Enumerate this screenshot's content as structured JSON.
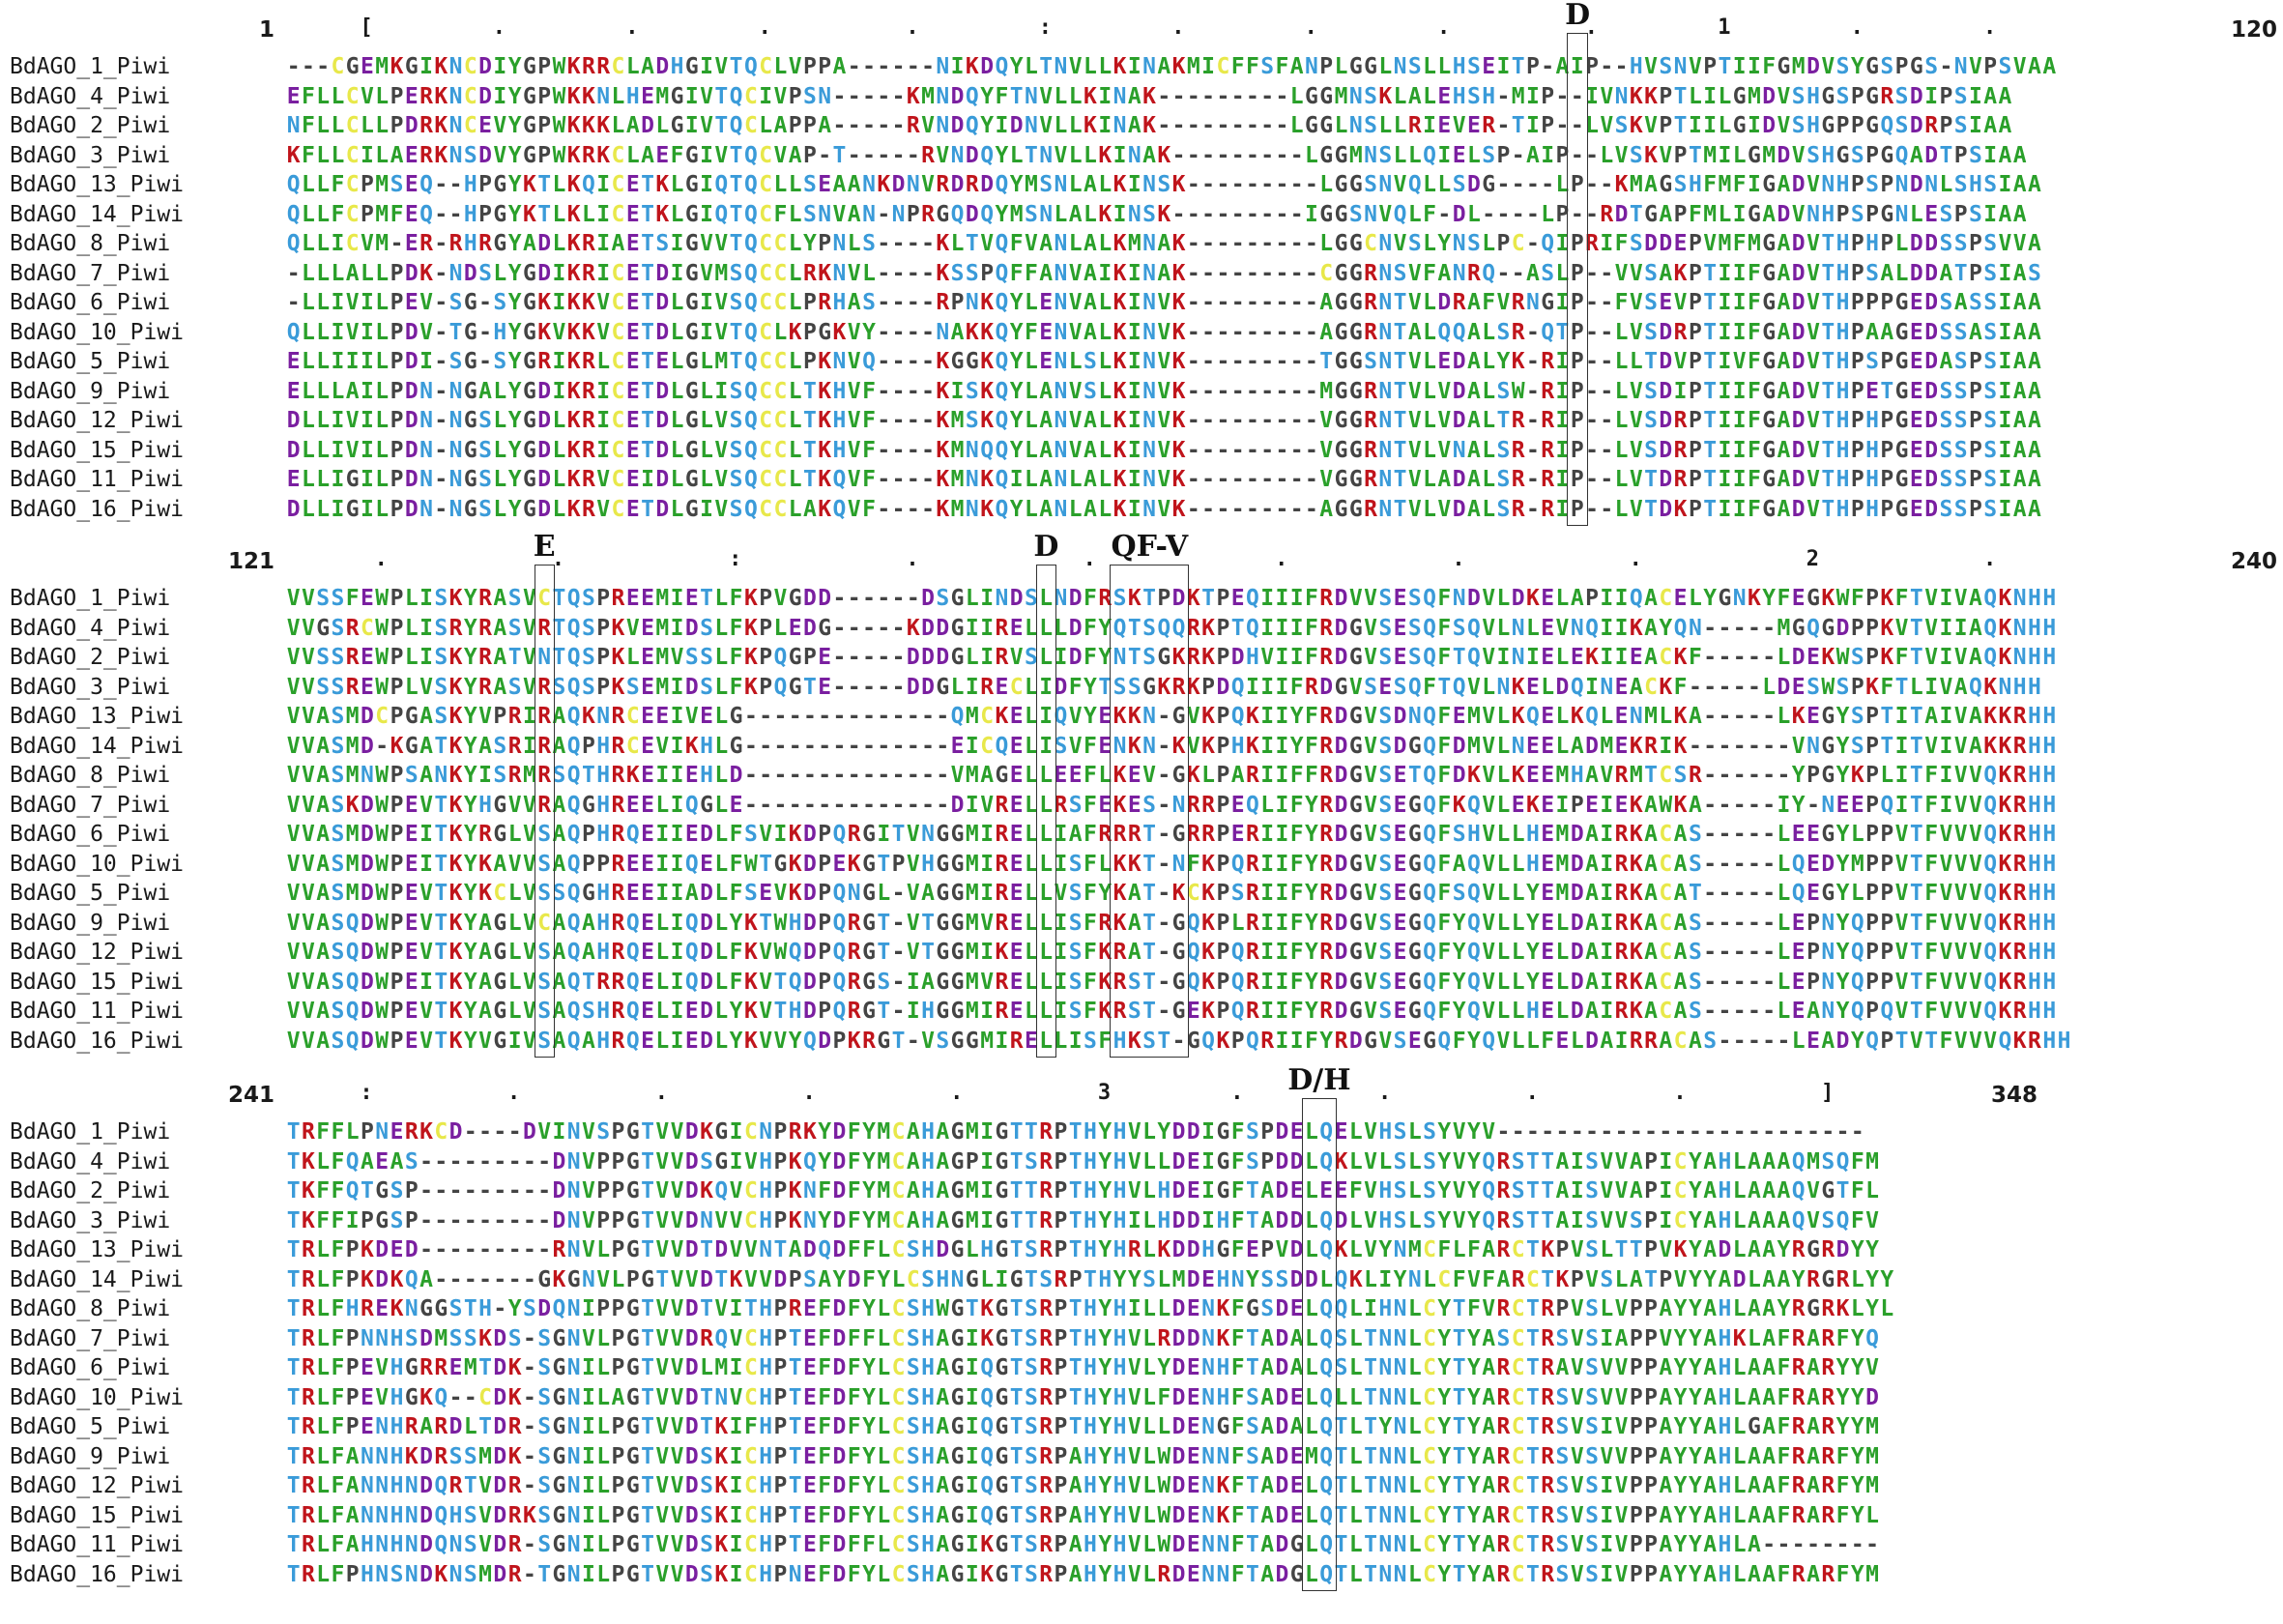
{
  "colors": {
    "hydrophobic": "#2aa02a",
    "positive": "#c0141b",
    "negative": "#7a1fa0",
    "polar": "#3a9bd9",
    "cysteine": "#e8e84a",
    "glycine": "#8a6a10",
    "default": "#444444",
    "gap": "#444444"
  },
  "blocks": [
    {
      "start_label": "1",
      "end_label": "120",
      "ruler_marks": [
        "[",
        ".",
        ".",
        ".",
        ".",
        ":",
        ".",
        ".",
        ".",
        ".",
        "1",
        ".",
        "."
      ],
      "names": [
        "BdAGO_1_Piwi",
        "BdAGO_4_Piwi",
        "BdAGO_2_Piwi",
        "BdAGO_3_Piwi",
        "BdAGO_13_Piwi",
        "BdAGO_14_Piwi",
        "BdAGO_8_Piwi",
        "BdAGO_7_Piwi",
        "BdAGO_6_Piwi",
        "BdAGO_10_Piwi",
        "BdAGO_5_Piwi",
        "BdAGO_9_Piwi",
        "BdAGO_12_Piwi",
        "BdAGO_15_Piwi",
        "BdAGO_11_Piwi",
        "BdAGO_16_Piwi"
      ],
      "seqs": [
        "---CGEMKGIKNCDIYGPWKRRCLADHGIVTQCLVPPA------NIKDQYLTNVLLKINAKMICFFSFANPLGGLNSLLHSEITP-AIP--HVSNVPTIIFGMDVSYGSPGS-NVPSVAA",
        "EFLLCVLPERKNCDIYGPWKKNLHEMGIVTQCIVPSN-----KMNDQYFTNVLLKINAK---------LGGMNSKLALEHSH-MIP--IVNKKPTLILGMDVSHGSPGRSDIPSIAA",
        "NFLLCLLPDRKNCEVYGPWKKKLADLGIVTQCLAPPA-----RVNDQYIDNVLLKINAK---------LGGLNSLLRIEVER-TIP--LVSKVPTIILGIDVSHGPPGQSDRPSIAA",
        "KFLLCILAERKNSDVYGPWKRKCLAEFGIVTQCVAP-T-----RVNDQYLTNVLLKINAK---------LGGMNSLLQIELSP-AIP--LVSKVPTMILGMDVSHGSPGQADTPSIAA",
        "QLLFCPMSEQ--HPGYKTLKQICETKLGIQTQCLLSEAANKDNVRDRDQYMSNLALKINSK---------LGGSNVQLLSDG----LP--KMAGSHFMFIGADVNHPSPNDNLSHSIAA",
        "QLLFCPMFEQ--HPGYKTLKLICETKLGIQTQCFLSNVAN-NPRGQDQYMSNLALKINSK---------IGGSNVQLF-DL----LP--RDTGAPFMLIGADVNHPSPGNLESPSIAA",
        "QLLICVM-ER-RHRGYADLKRIAETSIGVVTQCCLYPNLS----KLTVQFVANLALKMNAK---------LGGCNVSLYNSLPC-QIPRIFSDDEPVMFMGADVTHPHPLDDSSPSVVA",
        "-LLLALLPDK-NDSLYGDIKRICETDIGVMSQCCLRKNVL----KSSPQFFANVAIKINAK---------CGGRNSVFANRQ--ASLP--VVSAKPTIIFGADVTHPSALDDATPSIAS",
        "-LLIVILPEV-SG-SYGKIKKVCETDLGIVSQCCLPRHAS----RPNKQYLENVALKINVK---------AGGRNTVLDRAFVRNGIP--FVSEVPTIIFGADVTHPPPGEDSASSIAA",
        "QLLIVILPDV-TG-HYGKVKKVCETDLGIVTQCLKPGKVY----NAKKQYFENVALKINVK---------AGGRNTALQQALSR-QTP--LVSDRPTIIFGADVTHPAAGEDSSASIAA",
        "ELLIIILPDI-SG-SYGRIKRLCETELGLMTQCCLPKNVQ----KGGKQYLENLSLKINVK---------TGGSNTVLEDALYK-RIP--LLTDVPTIVFGADVTHPSPGEDASPSIAA",
        "ELLLAILPDN-NGALYGDIKRICETDLGLISQCCLTKHVF----KISKQYLANVSLKINVK---------MGGRNTVLVDALSW-RIP--LVSDIPTIIFGADVTHPETGEDSSPSIAA",
        "DLLIVILPDN-NGSLYGDLKRICETDLGLVSQCCLTKHVF----KMSKQYLANVALKINVK---------VGGRNTVLVDALTR-RIP--LVSDRPTIIFGADVTHPHPGEDSSPSIAA",
        "DLLIVILPDN-NGSLYGDLKRICETDLGLVSQCCLTKHVF----KMNQQYLANVALKINVK---------VGGRNTVLVNALSR-RIP--LVSDRPTIIFGADVTHPHPGEDSSPSIAA",
        "ELLIGILPDN-NGSLYGDLKRVCEIDLGLVSQCCLTKQVF----KMNKQILANLALKINVK---------VGGRNTVLADALSR-RIP--LVTDRPTIIFGADVTHPHPGEDSSPSIAA",
        "DLLIGILPDN-NGSLYGDLKRVCETDLGIVSQCCLAKQVF----KMNKQYLANLALKINVK---------AGGRNTVLVDALSR-RIP--LVTDKPTIIFGADVTHPHPGEDSSPSIAA"
      ],
      "motifs": [
        {
          "label": "D",
          "col": 87
        }
      ]
    },
    {
      "start_label": "121",
      "end_label": "240",
      "ruler_marks": [
        ".",
        ".",
        ":",
        ".",
        ".",
        ".",
        ".",
        ".",
        "2",
        "."
      ],
      "names": [
        "BdAGO_1_Piwi",
        "BdAGO_4_Piwi",
        "BdAGO_2_Piwi",
        "BdAGO_3_Piwi",
        "BdAGO_13_Piwi",
        "BdAGO_14_Piwi",
        "BdAGO_8_Piwi",
        "BdAGO_7_Piwi",
        "BdAGO_6_Piwi",
        "BdAGO_10_Piwi",
        "BdAGO_5_Piwi",
        "BdAGO_9_Piwi",
        "BdAGO_12_Piwi",
        "BdAGO_15_Piwi",
        "BdAGO_11_Piwi",
        "BdAGO_16_Piwi"
      ],
      "seqs": [
        "VVSSFEWPLISKYRASVCTQSPREEMIETLFKPVGDD------DSGLINDSLNDFRSKTPDKTPEQIIIFRDVVSESQFNDVLDKELAPIIQACELYGNKYFEGKWFPKFTVIVAQKNHH",
        "VVGSRCWPLISRYRASVRTQSPKVEMIDSLFKPLEDG-----KDDGIIRELLLDFYQTSQQRKPTQIIIFRDGVSESQFSQVLNLEVNQIIKAYQN-----MGQGDPPKVTVIIAQKNHH",
        "VVSSREWPLISKYRATVNTQSPKLEMVSSLFKPQGPE-----DDDGLIRVSLIDFYNTSGKRKPDHVIIFRDGVSESQFTQVINIELEKIIEACKF-----LDEKWSPKFTVIVAQKNHH",
        "VVSSREWPLVSKYRASVRSQSPKSEMIDSLFKPQGTE-----DDGLIRECLIDFYTSSGKRKPDQIIIFRDGVSESQFTQVLNKELDQINEACKF-----LDESWSPKFTLIVAQKNHH",
        "VVASMDCPGASKYVPRIRAQKNRCEEIVELG--------------QMCKELIQVYEKKN-GVKPQKIIYFRDGVSDNQFEMVLKQELKQLENMLKA-----LKEGYSPTITAIVAKKRHH",
        "VVASMD-KGATKYASRIRAQPHRCEVIKHLG--------------EICQELISVFENKN-KVKPHKIIYFRDGVSDGQFDMVLNEELADMEKRIK-------VNGYSPTITVIVAKKRHH",
        "VVASMNWPSANKYISRMRSQTHRKEIIEHLD--------------VMAGELLEEFLKEV-GKLPARIIFFRDGVSETQFDKVLKEEMHAVRMTCSR------YPGYKPLITFIVVQKRHH",
        "VVASKDWPEVTKYHGVVRAQGHREELIQGLE--------------DIVRELLRSFEKES-NRRPEQLIFYRDGVSEGQFKQVLEKEIPEIEKAWKA-----IY-NEEPQITFIVVQKRHH",
        "VVASMDWPEITKYRGLVSAQPHRQEIIEDLFSVIKDPQRGITVNGGMIRELLIAFRRRT-GRRPERIIFYRDGVSEGQFSHVLLHEMDAIRKACAS-----LEEGYLPPVTFVVVQKRHH",
        "VVASMDWPEITKYKAVVSAQPPREEIIQELFWTGKDPEKGTPVHGGMIRELLISFLKKT-NFKPQRIIFYRDGVSEGQFAQVLLHEMDAIRKACAS-----LQEDYMPPVTFVVVQKRHH",
        "VVASMDWPEVTKYKCLVSSQGHREEIIADLFSEVKDPQNGL-VAGGMIRELLVSFYKAT-KCKPSRIIFYRDGVSEGQFSQVLLYEMDAIRKACAT-----LQEGYLPPVTFVVVQKRHH",
        "VVASQDWPEVTKYAGLVCAQAHRQELIQDLYKTWHDPQRGT-VTGGMVRELLISFRKAT-GQKPLRIIFYRDGVSEGQFYQVLLYELDAIRKACAS-----LEPNYQPPVTFVVVQKRHH",
        "VVASQDWPEVTKYAGLVSAQAHRQELIQDLFKVWQDPQRGT-VTGGMIKELLISFKRAT-GQKPQRIIFYRDGVSEGQFYQVLLYELDAIRKACAS-----LEPNYQPPVTFVVVQKRHH",
        "VVASQDWPEITKYAGLVSAQTRRQELIQDLFKVTQDPQRGS-IAGGMVRELLISFKRST-GQKPQRIIFYRDGVSEGQFYQVLLYELDAIRKACAS-----LEPNYQPPVTFVVVQKRHH",
        "VVASQDWPEVTKYAGLVSAQSHRQELIEDLYKVTHDPQRGT-IHGGMIRELLISFKRST-GEKPQRIIFYRDGVSEGQFYQVLLHELDAIRKACAS-----LEANYQPQVTFVVVQKRHH",
        "VVASQDWPEVTKYVGIVSAQAHRQELIEDLYKVVYQDPKRGT-VSGGMIRELLISFHKST-GQKPQRIIFYRDGVSEGQFYQVLLFELDAIRRACAS-----LEADYQPTVTFVVVQKRHH"
      ],
      "motifs": [
        {
          "label": "E",
          "col": 17
        },
        {
          "label": "D",
          "col": 51
        },
        {
          "label": "QF-V",
          "col": 56,
          "width": 5
        }
      ]
    },
    {
      "start_label": "241",
      "end_label": "348",
      "ruler_marks": [
        ":",
        ".",
        ".",
        ".",
        ".",
        "3",
        ".",
        ".",
        ".",
        ".",
        "]"
      ],
      "names": [
        "BdAGO_1_Piwi",
        "BdAGO_4_Piwi",
        "BdAGO_2_Piwi",
        "BdAGO_3_Piwi",
        "BdAGO_13_Piwi",
        "BdAGO_14_Piwi",
        "BdAGO_8_Piwi",
        "BdAGO_7_Piwi",
        "BdAGO_6_Piwi",
        "BdAGO_10_Piwi",
        "BdAGO_5_Piwi",
        "BdAGO_9_Piwi",
        "BdAGO_12_Piwi",
        "BdAGO_15_Piwi",
        "BdAGO_11_Piwi",
        "BdAGO_16_Piwi"
      ],
      "seqs": [
        "TRFFLPNERKCD----DVINVSPGTVVDKGICNPRKYDFYMCAHAGMIGTTRPTHYHVLYDDIGFSPDELQELVHSLSYVYV-------------------------",
        "TKLFQAEAS---------DNVPPGTVVDSGIVHPKQYDFYMCAHAGPIGTSRPTHYHVLLDEIGFSPDDLQKLVLSLSYVYQRSTTAISVVAPICYAHLAAAQMSQFM",
        "TKFFQTGSP---------DNVPPGTVVDKQVCHPKNFDFYMCAHAGMIGTTRPTHYHVLHDEIGFTADELEEFVHSLSYVYQRSTTAISVVAPICYAHLAAAQVGTFL",
        "TKFFIPGSP---------DNVPPGTVVDNVVCHPKNYDFYMCAHAGMIGTTRPTHYHILHDDIHFTADDLQDLVHSLSYVYQRSTTAISVVSPICYAHLAAAQVSQFV",
        "TRLFPKDED---------RNVLPGTVVDTDVVNTADQDFFLCSHDGLHGTSRPTHYHRLKDDHGFEPVDLQKLVYNMCFLFARCTKPVSLTTPVKYADLAAYRGRDYY",
        "TRLFPKDKQA-------GKGNVLPGTVVDTKVVDPSAYDFYLCSHNGLIGTSRPTHYYSLMDEHNYSSDDLQKLIYNLCFVFARCTKPVSLATPVYYADLAAYRGRLYY",
        "TRLFHREKNGGSTH-YSDQNIPPGTVVDTVITHPREFDFYLCSHWGTKGTSRPTHYHILLDENKFGSDELQQLIHNLCYTFVRCTRPVSLVPPAYYAHLAAYRGRKLYL",
        "TRLFPNNHSDMSSKDS-SGNVLPGTVVDRQVCHPTEFDFFLCSHAGIKGTSRPTHYHVLRDDNKFTADALQSLTNNLCYTYASCTRSVSIAPPVYYAHKLAFRARFYQ",
        "TRLFPEVHGRREMTDK-SGNILPGTVVDLMICHPTEFDFYLCSHAGIQGTSRPTHYHVLYDENHFTADALQSLTNNLCYTYARCTRAVSVVPPAYYAHLAAFRARYYV",
        "TRLFPEVHGKQ--CDK-SGNILAGTVVDTNVCHPTEFDFYLCSHAGIQGTSRPTHYHVLFDENHFSADELQLLTNNLCYTYARCTRSVSVVPPAYYAHLAAFRARYYD",
        "TRLFPENHRARDLTDR-SGNILPGTVVDTKIFHPTEFDFYLCSHAGIQGTSRPTHYHVLLDENGFSADALQTLTYNLCYTYARCTRSVSIVPPAYYAHLGAFRARYYM",
        "TRLFANNHKDRSSMDK-SGNILPGTVVDSKICHPTEFDFYLCSHAGIQGTSRPAHYHVLWDENNFSADEMQTLTNNLCYTYARCTRSVSVVPPAYYAHLAAFRARFYM",
        "TRLFANNHNDQRTVDR-SGNILPGTVVDSKICHPTEFDFYLCSHAGIQGTSRPAHYHVLWDENKFTADELQTLTNNLCYTYARCTRSVSIVPPAYYAHLAAFRARFYM",
        "TRLFANNHNDQHSVDRKSGNILPGTVVDSKICHPTEFDFYLCSHAGIQGTSRPAHYHVLWDENKFTADELQTLTNNLCYTYARCTRSVSIVPPAYYAHLAAFRARFYL",
        "TRLFAHNHNDQNSVDR-SGNILPGTVVDSKICHPTEFDFFLCSHAGIKGTSRPAHYHVLWDENNFTADGLQTLTNNLCYTYARCTRSVSIVPPAYYAHLA--------",
        "TRLFPHNSNDKNSMDR-TGNILPGTVVDSKICHPNEFDFYLCSHAGIKGTSRPAHYHVLRDENNFTADGLQTLTNNLCYTYARCTRSVSIVPPAYYAHLAAFRARFYM"
      ],
      "motifs": [
        {
          "label": "D/H",
          "col": 69,
          "width": 2
        }
      ]
    }
  ]
}
